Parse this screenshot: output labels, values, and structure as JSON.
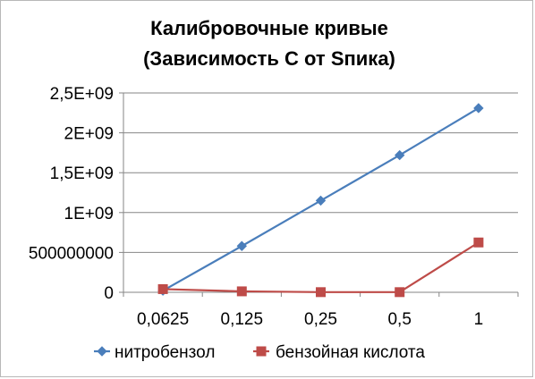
{
  "chart_data": {
    "type": "line",
    "title_lines": [
      "Калибровочные кривые",
      "(Зависимость С от Sпика)"
    ],
    "categories": [
      "0,0625",
      "0,125",
      "0,25",
      "0,5",
      "1"
    ],
    "y_ticks": [
      "0",
      "500000000",
      "1E+09",
      "1,5E+09",
      "2E+09",
      "2,5E+09"
    ],
    "ylim": [
      0,
      2500000000
    ],
    "grid": "horizontal",
    "legend_position": "bottom",
    "series": [
      {
        "name": "нитробензол",
        "color": "#4a7ebb",
        "marker": "diamond",
        "values": [
          20000000,
          580000000,
          1150000000,
          1720000000,
          2310000000
        ]
      },
      {
        "name": "бензойная кислота",
        "color": "#be4b48",
        "marker": "square",
        "values": [
          40000000,
          12000000,
          2000000,
          2000000,
          625000000
        ]
      }
    ]
  }
}
